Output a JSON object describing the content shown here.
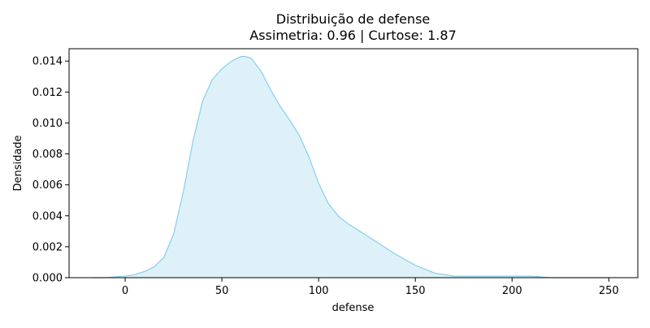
{
  "chart_data": {
    "type": "area",
    "title": "Distribuição de defense",
    "subtitle": "Assimetria: 0.96 | Curtose: 1.87",
    "xlabel": "defense",
    "ylabel": "Densidade",
    "xlim": [
      -29,
      265
    ],
    "ylim": [
      0,
      0.0148
    ],
    "x_ticks": [
      0,
      50,
      100,
      150,
      200,
      250
    ],
    "y_ticks": [
      0.0,
      0.002,
      0.004,
      0.006,
      0.008,
      0.01,
      0.012,
      0.014
    ],
    "x_tick_labels": [
      "0",
      "50",
      "100",
      "150",
      "200",
      "250"
    ],
    "y_tick_labels": [
      "0.000",
      "0.002",
      "0.004",
      "0.006",
      "0.008",
      "0.010",
      "0.012",
      "0.014"
    ],
    "grid": false,
    "series": [
      {
        "line_color": "#87CEEB",
        "fill_color": "#87CEEB",
        "fill_opacity": 0.28,
        "x": [
          -17,
          -10,
          0,
          5,
          10,
          15,
          20,
          25,
          30,
          35,
          40,
          45,
          50,
          55,
          60,
          62,
          65,
          70,
          75,
          80,
          85,
          90,
          95,
          100,
          105,
          110,
          115,
          120,
          130,
          140,
          150,
          160,
          170,
          180,
          190,
          200,
          210,
          220,
          230,
          240,
          250
        ],
        "y": [
          0.0,
          0.0,
          0.0001,
          0.0002,
          0.0004,
          0.0007,
          0.0013,
          0.0028,
          0.0055,
          0.0088,
          0.0114,
          0.0128,
          0.0135,
          0.014,
          0.0143,
          0.0143,
          0.0142,
          0.0134,
          0.0122,
          0.0111,
          0.0102,
          0.0092,
          0.0078,
          0.0061,
          0.0048,
          0.004,
          0.0035,
          0.0031,
          0.0023,
          0.0015,
          0.0008,
          0.0003,
          0.0001,
          0.0001,
          0.0001,
          0.0001,
          0.0001,
          0.0,
          0.0,
          0.0,
          0.0
        ]
      }
    ]
  }
}
